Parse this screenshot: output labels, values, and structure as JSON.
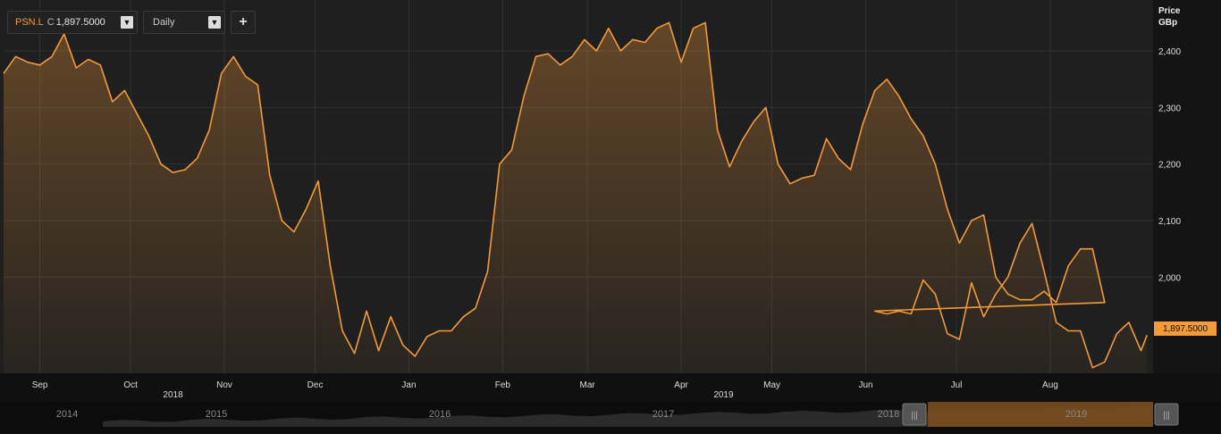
{
  "toolbar": {
    "symbol": "PSN.L",
    "currency": "C",
    "symbol_value": "1,897.5000",
    "interval": "Daily",
    "dropdown_icon": "triangle-down-icon",
    "add_icon": "plus-icon",
    "add_label": "+"
  },
  "price_label": "Price",
  "unit_label": "GBp",
  "last_value_label": "1,897.5000",
  "colors": {
    "line": "#f39a3a",
    "background": "#1e1e1e",
    "grid": "#333333",
    "navigator": "#7a4e1f"
  },
  "chart_data": {
    "type": "area",
    "title": "",
    "xlabel": "",
    "ylabel": "Price GBp",
    "ylim": [
      1830,
      2490
    ],
    "yticks": [
      2000,
      2100,
      2200,
      2300,
      2400
    ],
    "ytick_labels": [
      "2,000",
      "2,100",
      "2,200",
      "2,300",
      "2,400"
    ],
    "grid": true,
    "x_range": [
      "2018-08-20",
      "2019-09-04"
    ],
    "xticks": [
      {
        "date": "2018-09-01",
        "label": "Sep"
      },
      {
        "date": "2018-10-01",
        "label": "Oct"
      },
      {
        "date": "2018-11-01",
        "label": "Nov"
      },
      {
        "date": "2018-12-01",
        "label": "Dec"
      },
      {
        "date": "2019-01-01",
        "label": "Jan"
      },
      {
        "date": "2019-02-01",
        "label": "Feb"
      },
      {
        "date": "2019-03-01",
        "label": "Mar"
      },
      {
        "date": "2019-04-01",
        "label": "Apr"
      },
      {
        "date": "2019-05-01",
        "label": "May"
      },
      {
        "date": "2019-06-01",
        "label": "Jun"
      },
      {
        "date": "2019-07-01",
        "label": "Jul"
      },
      {
        "date": "2019-08-01",
        "label": "Aug"
      }
    ],
    "year_labels": [
      {
        "date": "2018-10-15",
        "label": "2018"
      },
      {
        "date": "2019-04-15",
        "label": "2019"
      }
    ],
    "series": [
      {
        "name": "PSN.L",
        "x": [
          "2018-08-20",
          "2018-08-24",
          "2018-08-28",
          "2018-09-01",
          "2018-09-05",
          "2018-09-09",
          "2018-09-13",
          "2018-09-17",
          "2018-09-21",
          "2018-09-25",
          "2018-09-29",
          "2018-10-03",
          "2018-10-07",
          "2018-10-11",
          "2018-10-15",
          "2018-10-19",
          "2018-10-23",
          "2018-10-27",
          "2018-10-31",
          "2018-11-04",
          "2018-11-08",
          "2018-11-12",
          "2018-11-16",
          "2018-11-20",
          "2018-11-24",
          "2018-11-28",
          "2018-12-02",
          "2018-12-06",
          "2018-12-10",
          "2018-12-14",
          "2018-12-18",
          "2018-12-22",
          "2018-12-26",
          "2018-12-30",
          "2019-01-03",
          "2019-01-07",
          "2019-01-11",
          "2019-01-15",
          "2019-01-19",
          "2019-01-23",
          "2019-01-27",
          "2019-01-31",
          "2019-02-04",
          "2019-02-08",
          "2019-02-12",
          "2019-02-16",
          "2019-02-20",
          "2019-02-24",
          "2019-02-28",
          "2019-03-04",
          "2019-03-08",
          "2019-03-12",
          "2019-03-16",
          "2019-03-20",
          "2019-03-24",
          "2019-03-28",
          "2019-04-01",
          "2019-04-05",
          "2019-04-09",
          "2019-04-13",
          "2019-04-17",
          "2019-04-21",
          "2019-04-25",
          "2019-04-29",
          "2019-05-03",
          "2019-05-07",
          "2019-05-11",
          "2019-05-15",
          "2019-05-19",
          "2019-05-23",
          "2019-05-27",
          "2019-05-31",
          "2019-06-04",
          "2019-06-08",
          "2019-06-12",
          "2019-06-16",
          "2019-06-20",
          "2019-06-24",
          "2019-06-28",
          "2019-07-02",
          "2019-07-06",
          "2019-07-10",
          "2019-07-14",
          "2019-07-18",
          "2019-07-22",
          "2019-07-26",
          "2019-07-30",
          "2019-08-03",
          "2019-08-07",
          "2019-08-11",
          "2019-08-15",
          "2019-08-19",
          "2019-08-23"
        ],
        "values": [
          2360,
          2390,
          2380,
          2375,
          2390,
          2430,
          2370,
          2385,
          2375,
          2310,
          2330,
          2290,
          2250,
          2200,
          2185,
          2190,
          2210,
          2260,
          2360,
          2390,
          2355,
          2340,
          2180,
          2100,
          2080,
          2120,
          2170,
          2020,
          1905,
          1865,
          1940,
          1870,
          1930,
          1880,
          1860,
          1895,
          1905,
          1905,
          1930,
          1945,
          2010,
          2200,
          2225,
          2320,
          2390,
          2395,
          2375,
          2390,
          2420,
          2400,
          2440,
          2400,
          2420,
          2415,
          2440,
          2450,
          2380,
          2440,
          2450,
          2260,
          2195,
          2240,
          2275,
          2300,
          2200,
          2165,
          2175,
          2180,
          2245,
          2210,
          2190,
          2270,
          2330,
          2350,
          2320,
          2280,
          2250,
          2200,
          2120,
          2060,
          2100,
          2110,
          2000,
          1970,
          1960,
          1960,
          1975,
          1955,
          2020,
          2050,
          2050,
          1955,
          1940
        ],
        "x2": [
          "2019-06-04",
          "2019-06-08",
          "2019-06-12",
          "2019-06-16",
          "2019-06-20",
          "2019-06-24",
          "2019-06-28",
          "2019-07-02",
          "2019-07-06",
          "2019-07-10",
          "2019-07-14",
          "2019-07-18",
          "2019-07-22",
          "2019-07-26",
          "2019-07-30",
          "2019-08-03",
          "2019-08-07",
          "2019-08-11",
          "2019-08-15",
          "2019-08-19",
          "2019-08-23",
          "2019-08-27",
          "2019-08-31",
          "2019-09-02"
        ],
        "values2": [
          1940,
          1935,
          1940,
          1935,
          1995,
          1970,
          1900,
          1890,
          1990,
          1930,
          1970,
          2000,
          2060,
          2095,
          2010,
          1920,
          1905,
          1905,
          1840,
          1850,
          1900,
          1920,
          1870,
          1897.5
        ]
      }
    ],
    "navigator": {
      "year_labels": [
        "2014",
        "2015",
        "2016",
        "2017",
        "2018",
        "2019"
      ],
      "handle_icon": "grip-lines-icon"
    }
  }
}
